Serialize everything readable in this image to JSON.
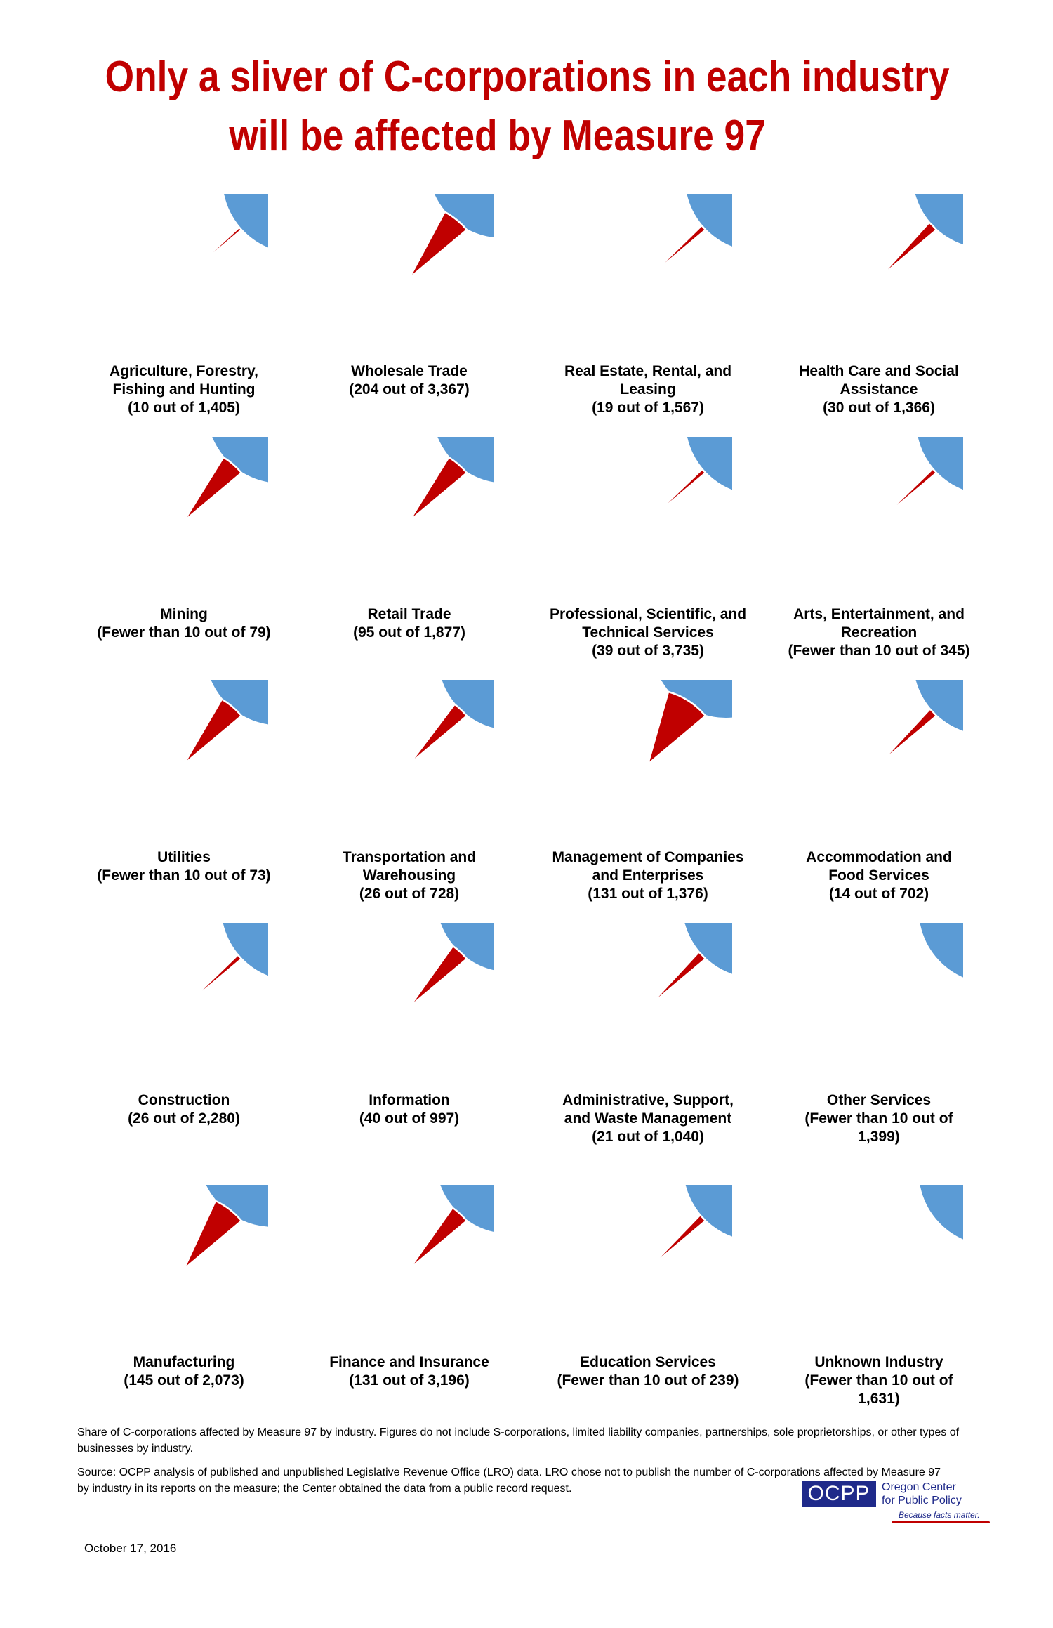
{
  "title": {
    "line1": "Only a sliver of C-corporations in each industry",
    "line2": "will be affected by Measure 97"
  },
  "colors": {
    "affected": "#c00000",
    "not_affected": "#5b9bd5",
    "title": "#c00000",
    "brand": "#1f2a8a"
  },
  "chart_data": {
    "type": "pie",
    "unit": "C-corporations",
    "charts": [
      {
        "label": [
          "Agriculture, Forestry,",
          "Fishing and Hunting",
          "(10 out of 1,405)"
        ],
        "affected": 10,
        "total": 1405
      },
      {
        "label": [
          "Wholesale Trade",
          "(204 out of 3,367)"
        ],
        "affected": 204,
        "total": 3367
      },
      {
        "label": [
          "Real Estate, Rental, and",
          "Leasing",
          "(19 out of 1,567)"
        ],
        "affected": 19,
        "total": 1567
      },
      {
        "label": [
          "Health Care and Social",
          "Assistance",
          "(30 out of 1,366)"
        ],
        "affected": 30,
        "total": 1366
      },
      {
        "label": [
          "Mining",
          "(Fewer than 10 out of 79)"
        ],
        "affected": 4,
        "total": 79
      },
      {
        "label": [
          "Retail Trade",
          "(95 out of 1,877)"
        ],
        "affected": 95,
        "total": 1877
      },
      {
        "label": [
          "Professional, Scientific, and",
          "Technical Services",
          "(39 out of 3,735)"
        ],
        "affected": 39,
        "total": 3735
      },
      {
        "label": [
          "Arts, Entertainment, and",
          "Recreation",
          "(Fewer than 10 out of 345)"
        ],
        "affected": 4,
        "total": 345
      },
      {
        "label": [
          "Utilities",
          "(Fewer than 10 out of 73)"
        ],
        "affected": 4,
        "total": 73
      },
      {
        "label": [
          "Transportation and",
          "Warehousing",
          "(26 out of 728)"
        ],
        "affected": 26,
        "total": 728
      },
      {
        "label": [
          "Management of Companies",
          "and Enterprises",
          "(131 out of 1,376)"
        ],
        "affected": 131,
        "total": 1376
      },
      {
        "label": [
          "Accommodation and",
          "Food Services",
          "(14 out of 702)"
        ],
        "affected": 14,
        "total": 702
      },
      {
        "label": [
          "Construction",
          "(26 out of 2,280)"
        ],
        "affected": 26,
        "total": 2280
      },
      {
        "label": [
          "Information",
          "(40 out of 997)"
        ],
        "affected": 40,
        "total": 997
      },
      {
        "label": [
          "Administrative, Support,",
          "and Waste Management",
          "(21 out of 1,040)"
        ],
        "affected": 21,
        "total": 1040
      },
      {
        "label": [
          "Other Services",
          "(Fewer than 10 out of",
          "1,399)"
        ],
        "affected": 1,
        "total": 1399
      },
      {
        "label": [
          "Manufacturing",
          "(145 out of 2,073)"
        ],
        "affected": 145,
        "total": 2073
      },
      {
        "label": [
          "Finance and Insurance",
          "(131 out of 3,196)"
        ],
        "affected": 131,
        "total": 3196
      },
      {
        "label": [
          "Education Services",
          "(Fewer than 10 out of 239)"
        ],
        "affected": 4,
        "total": 239
      },
      {
        "label": [
          "Unknown Industry",
          "(Fewer than 10 out of",
          "1,631)"
        ],
        "affected": 1,
        "total": 1631
      }
    ]
  },
  "notes": {
    "description": "Share of C-corporations affected by Measure 97 by industry. Figures do not include S-corporations, limited liability companies, partnerships, sole proprietorships, or other types of businesses by industry.",
    "source": "Source: OCPP analysis of published and unpublished Legislative Revenue Office (LRO) data. LRO chose not to publish the number of C-corporations affected by Measure 97 by industry in its reports on the measure; the Center obtained the data from a public record request."
  },
  "date": "October 17, 2016",
  "logo": {
    "abbrev": "OCPP",
    "name_line1": "Oregon Center",
    "name_line2": "for Public Policy",
    "tagline": "Because facts matter."
  }
}
